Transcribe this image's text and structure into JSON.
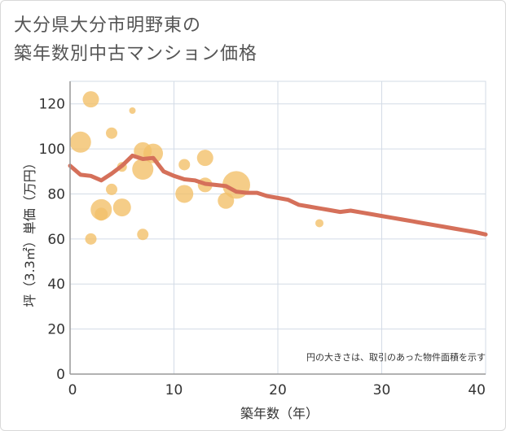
{
  "title_lines": [
    "大分県大分市明野東の",
    "築年数別中古マンション価格"
  ],
  "chart_data": {
    "type": "scatter",
    "xlabel": "築年数（年）",
    "ylabel": "坪（3.3㎡）単価（万円）",
    "note": "円の大きさは、取引のあった物件面積を示す",
    "xlim": [
      0,
      40
    ],
    "ylim": [
      0,
      130
    ],
    "xticks": [
      0,
      10,
      20,
      30,
      40
    ],
    "yticks": [
      0,
      20,
      40,
      60,
      80,
      100,
      120
    ],
    "grid": true,
    "colors": {
      "bubble": "#f3c06a",
      "line": "#d5705a",
      "grid": "#d3dbe6",
      "axis": "#999999"
    },
    "bubbles": [
      {
        "x": 1,
        "y": 103,
        "size": 13
      },
      {
        "x": 2,
        "y": 122,
        "size": 10
      },
      {
        "x": 2,
        "y": 60,
        "size": 7
      },
      {
        "x": 3,
        "y": 73,
        "size": 13
      },
      {
        "x": 3,
        "y": 71,
        "size": 8
      },
      {
        "x": 4,
        "y": 107,
        "size": 7
      },
      {
        "x": 4,
        "y": 82,
        "size": 7
      },
      {
        "x": 5,
        "y": 74,
        "size": 11
      },
      {
        "x": 5,
        "y": 92,
        "size": 6
      },
      {
        "x": 6,
        "y": 117,
        "size": 4
      },
      {
        "x": 7,
        "y": 99,
        "size": 11
      },
      {
        "x": 7,
        "y": 91,
        "size": 13
      },
      {
        "x": 7,
        "y": 62,
        "size": 7
      },
      {
        "x": 8,
        "y": 98,
        "size": 12
      },
      {
        "x": 11,
        "y": 93,
        "size": 7
      },
      {
        "x": 11,
        "y": 80,
        "size": 11
      },
      {
        "x": 13,
        "y": 96,
        "size": 10
      },
      {
        "x": 13,
        "y": 84,
        "size": 9
      },
      {
        "x": 15,
        "y": 77,
        "size": 10
      },
      {
        "x": 16,
        "y": 84,
        "size": 17
      },
      {
        "x": 24,
        "y": 67,
        "size": 5
      }
    ],
    "trend": {
      "x": [
        0,
        1,
        2,
        3,
        4,
        5,
        6,
        7,
        8,
        9,
        10,
        11,
        12,
        13,
        14,
        15,
        16,
        17,
        18,
        19,
        20,
        21,
        22,
        23,
        24,
        25,
        26,
        27,
        28,
        29,
        30,
        31,
        32,
        33,
        34,
        35,
        36,
        37,
        38,
        39,
        40
      ],
      "y": [
        92.5,
        88.5,
        88,
        86,
        89,
        92.5,
        97,
        95.5,
        96,
        90,
        88,
        86.5,
        86,
        84.5,
        84,
        83.5,
        81,
        80.5,
        80.5,
        79,
        78.2,
        77.4,
        75.2,
        74.4,
        73.6,
        72.8,
        72,
        72.6,
        71.8,
        71,
        70.2,
        69.4,
        68.6,
        67.8,
        67,
        66.2,
        65.4,
        64.6,
        63.8,
        63,
        62
      ]
    }
  }
}
